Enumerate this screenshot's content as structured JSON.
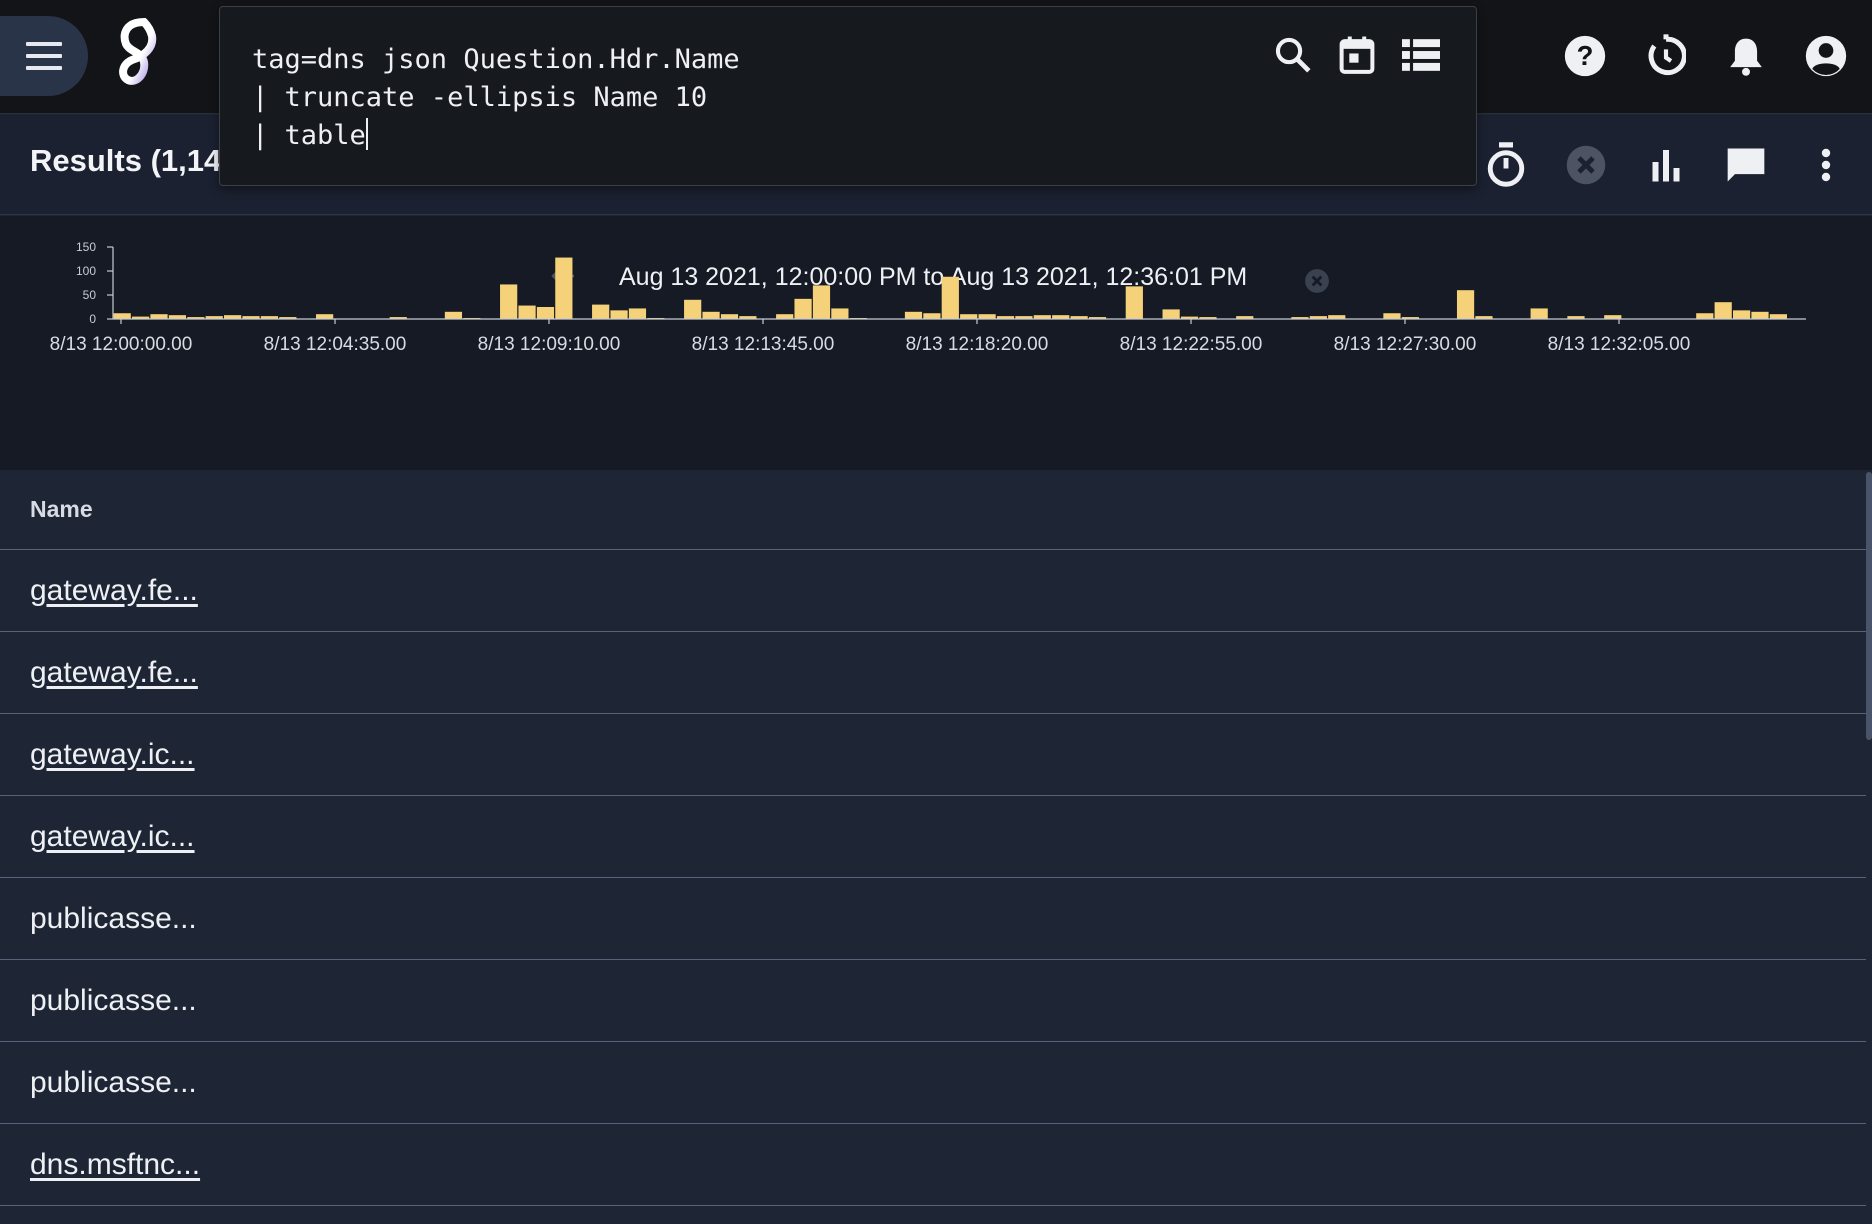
{
  "query": {
    "lines": [
      "tag=dns json Question.Hdr.Name",
      "| truncate -ellipsis Name 10",
      "| table"
    ]
  },
  "results": {
    "title": "Results (1,14"
  },
  "overview": {
    "range_label": "Aug 13 2021, 12:00:00 PM to Aug 13 2021, 12:36:01 PM"
  },
  "chart_data": {
    "type": "bar",
    "ylim": [
      0,
      150
    ],
    "y_ticks": [
      "150",
      "100",
      "50",
      "0"
    ],
    "x_tick_labels": [
      "8/13 12:00:00.00",
      "8/13 12:04:35.00",
      "8/13 12:09:10.00",
      "8/13 12:13:45.00",
      "8/13 12:18:20.00",
      "8/13 12:22:55.00",
      "8/13 12:27:30.00",
      "8/13 12:32:05.00"
    ],
    "bar_color": "#f5d27a",
    "values": [
      12,
      5,
      10,
      8,
      4,
      6,
      8,
      6,
      6,
      4,
      0,
      10,
      0,
      0,
      0,
      4,
      0,
      0,
      15,
      2,
      0,
      72,
      28,
      25,
      128,
      0,
      30,
      18,
      22,
      2,
      0,
      40,
      15,
      10,
      6,
      0,
      10,
      42,
      70,
      22,
      2,
      0,
      0,
      15,
      12,
      88,
      10,
      10,
      6,
      6,
      8,
      8,
      6,
      4,
      0,
      68,
      0,
      20,
      5,
      4,
      0,
      6,
      0,
      0,
      4,
      6,
      8,
      0,
      0,
      12,
      4,
      0,
      0,
      60,
      6,
      0,
      0,
      22,
      0,
      6,
      0,
      8,
      0,
      0,
      0,
      0,
      12,
      35,
      18,
      15,
      10,
      0
    ]
  },
  "table": {
    "header": "Name",
    "rows": [
      {
        "text": "gateway.fe...",
        "link": true
      },
      {
        "text": "gateway.fe...",
        "link": true
      },
      {
        "text": "gateway.ic...",
        "link": true
      },
      {
        "text": "gateway.ic...",
        "link": true
      },
      {
        "text": "publicasse...",
        "link": false
      },
      {
        "text": "publicasse...",
        "link": false
      },
      {
        "text": "publicasse...",
        "link": false
      },
      {
        "text": "dns.msftnc...",
        "link": true
      }
    ]
  },
  "icons": [
    "menu-icon",
    "gravwell-logo",
    "search-icon",
    "calendar-icon",
    "list-icon",
    "help-icon",
    "history-icon",
    "notifications-icon",
    "account-icon",
    "timer-icon",
    "cancel-icon",
    "chart-icon",
    "comment-icon",
    "more-vert-icon",
    "arrow-left-icon",
    "close-circle-icon"
  ]
}
